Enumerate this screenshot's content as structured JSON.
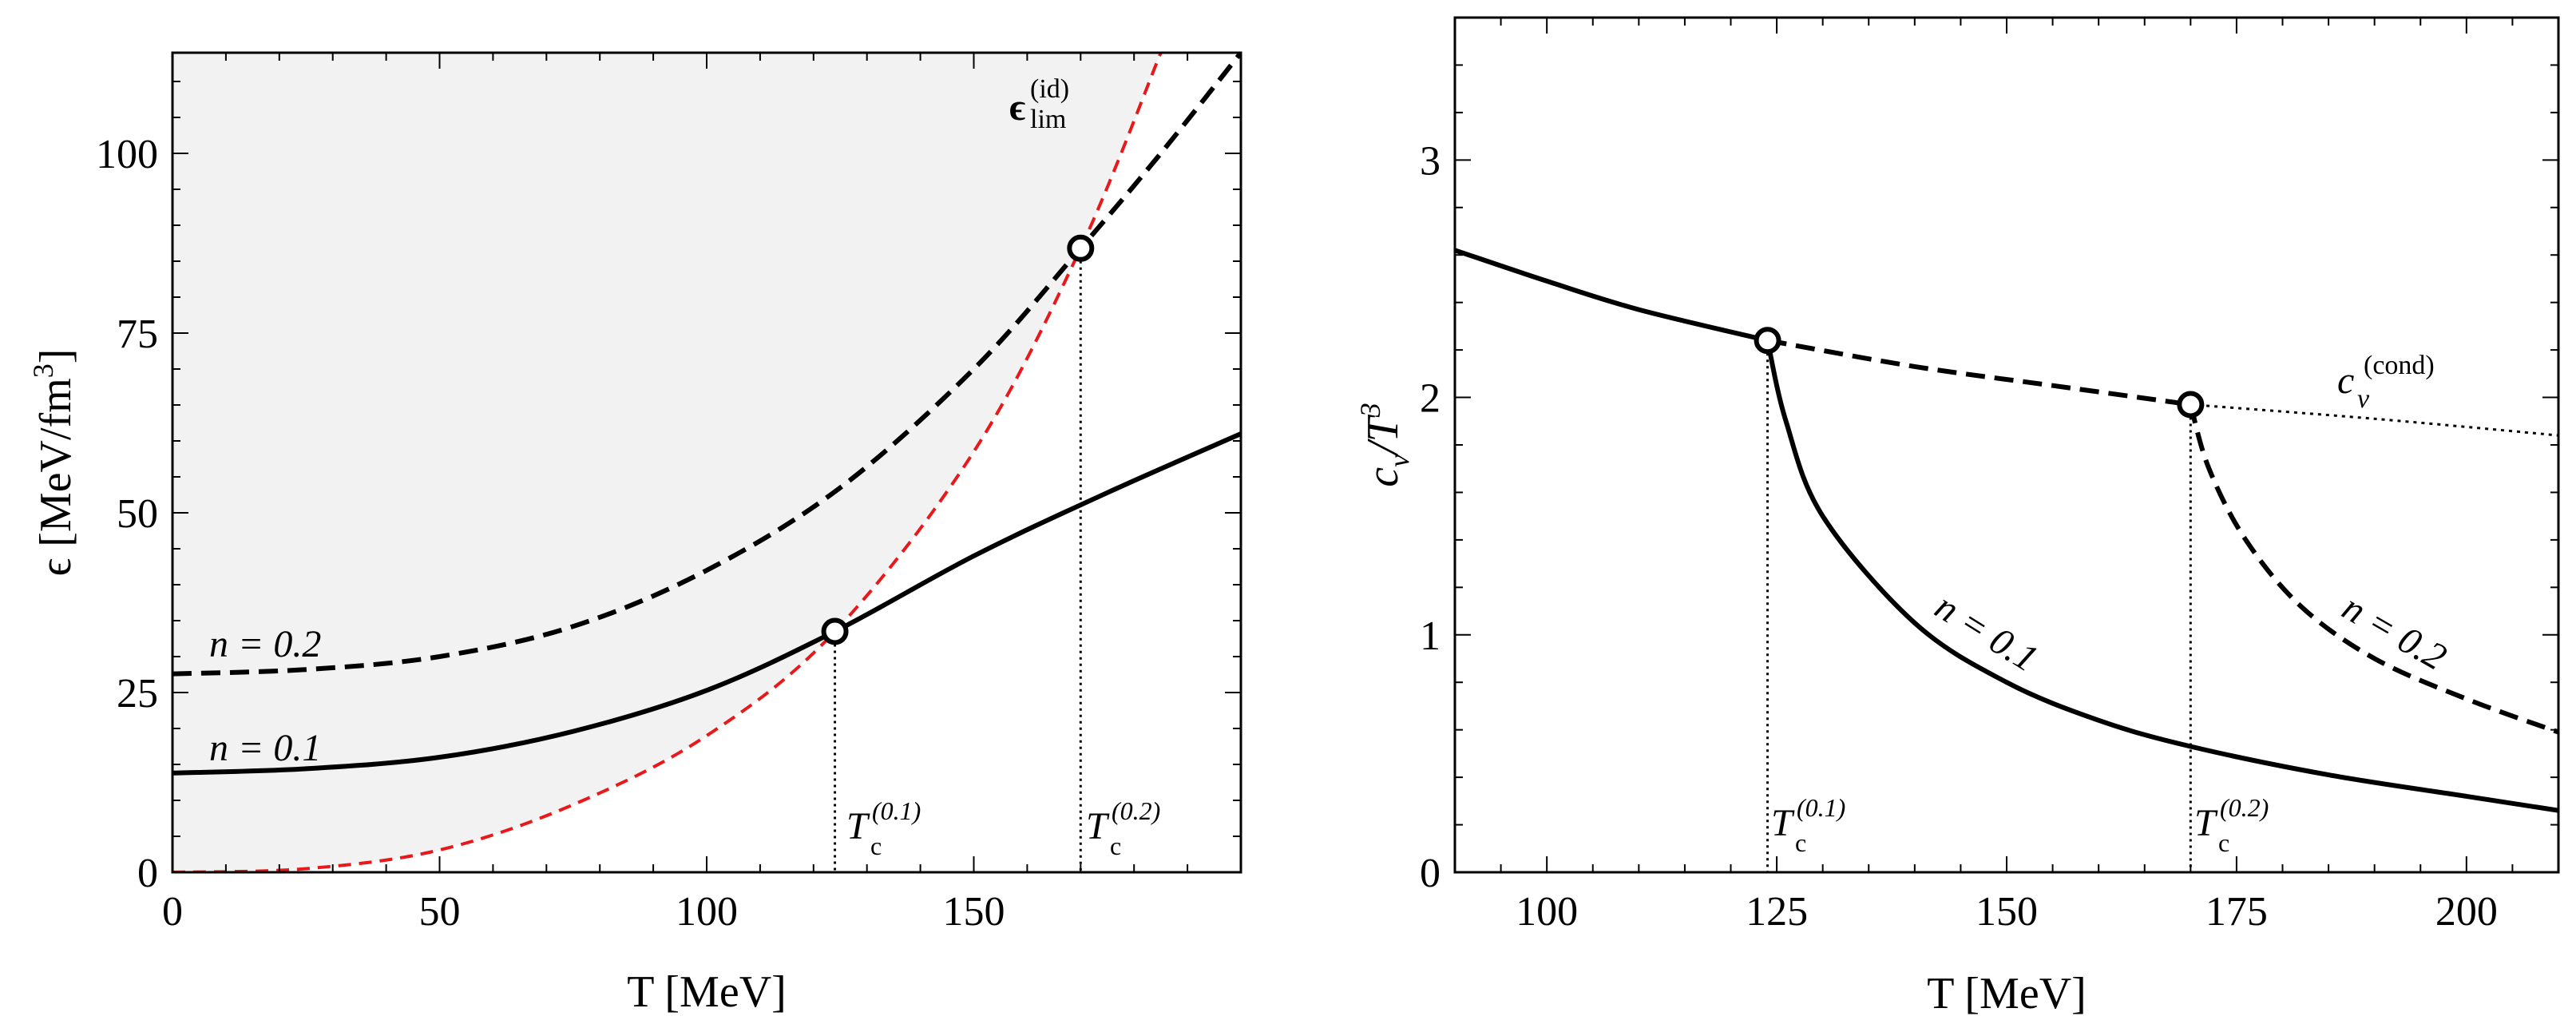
{
  "chart_data": [
    {
      "type": "line",
      "name": "energy-density",
      "xlabel": "T [MeV]",
      "ylabel": "ϵ [MeV/fm³]",
      "ylabel_parts": [
        "ϵ [MeV/fm",
        "3",
        "]"
      ],
      "xlim": [
        0,
        200
      ],
      "ylim": [
        0,
        114
      ],
      "xticks": [
        0,
        50,
        100,
        150
      ],
      "yticks": [
        0,
        25,
        50,
        75,
        100
      ],
      "shaded_region": "above ideal-gas limit curve",
      "shade_color": "#f2f2f2",
      "series": [
        {
          "name": "n = 0.1",
          "style": "solid",
          "color": "#000000",
          "x": [
            0,
            25,
            50,
            75,
            100,
            124,
            150,
            175,
            200
          ],
          "y": [
            13.8,
            14.4,
            16.0,
            19.6,
            25.3,
            33.5,
            44.0,
            52.8,
            61.0
          ]
        },
        {
          "name": "n = 0.2",
          "style": "dashed",
          "color": "#000000",
          "x": [
            0,
            25,
            50,
            75,
            100,
            125,
            150,
            170,
            185,
            200
          ],
          "y": [
            27.6,
            28.2,
            30.0,
            34.2,
            42.0,
            53.5,
            70.0,
            86.8,
            100.0,
            114.0
          ]
        },
        {
          "name": "ϵ_lim^(id)",
          "style": "dashed",
          "color": "#e8191b",
          "x": [
            0,
            25,
            50,
            75,
            100,
            124,
            150,
            170,
            185
          ],
          "y": [
            0,
            0.5,
            3.1,
            9.4,
            19.0,
            33.5,
            58.5,
            86.8,
            114.0
          ]
        }
      ],
      "critical_points": [
        {
          "label": "T",
          "sub": "c",
          "sup": "(0.1)",
          "x": 124,
          "y": 33.5
        },
        {
          "label": "T",
          "sub": "c",
          "sup": "(0.2)",
          "x": 170,
          "y": 86.8
        }
      ],
      "annotations": {
        "n01": "n = 0.1",
        "n02": "n = 0.2",
        "eps_lim_base": "ϵ",
        "eps_lim_sup": "(id)",
        "eps_lim_sub": "lim"
      }
    },
    {
      "type": "line",
      "name": "specific-heat",
      "xlabel": "T [MeV]",
      "ylabel": "c_v/T³",
      "ylabel_parts": [
        "c",
        "v",
        "/T",
        "3"
      ],
      "xlim": [
        90,
        210
      ],
      "ylim": [
        0,
        3.6
      ],
      "xticks": [
        100,
        125,
        150,
        175,
        200
      ],
      "yticks": [
        0,
        1,
        2,
        3
      ],
      "series": [
        {
          "name": "c_v^(cond) / n = 0.1 below Tc",
          "style": "solid",
          "color": "#000000",
          "x": [
            90,
            100,
            110,
            124
          ],
          "y": [
            2.62,
            2.49,
            2.37,
            2.24
          ]
        },
        {
          "name": "c_v^(cond) between Tc",
          "style": "dashed",
          "color": "#000000",
          "x": [
            124,
            140,
            155,
            170
          ],
          "y": [
            2.24,
            2.13,
            2.05,
            1.97
          ]
        },
        {
          "name": "c_v^(cond) continuation",
          "style": "dotted",
          "color": "#000000",
          "x": [
            170,
            190,
            210
          ],
          "y": [
            1.97,
            1.91,
            1.84
          ]
        },
        {
          "name": "n = 0.1",
          "style": "solid",
          "color": "#000000",
          "x": [
            124,
            126,
            130,
            140,
            150,
            160,
            170,
            185,
            200,
            210
          ],
          "y": [
            2.24,
            1.9,
            1.5,
            1.05,
            0.8,
            0.64,
            0.53,
            0.41,
            0.32,
            0.26
          ]
        },
        {
          "name": "n = 0.2",
          "style": "dashed",
          "color": "#000000",
          "x": [
            170,
            172,
            176,
            182,
            190,
            200,
            210
          ],
          "y": [
            1.97,
            1.7,
            1.4,
            1.12,
            0.9,
            0.73,
            0.59
          ]
        }
      ],
      "critical_points": [
        {
          "label": "T",
          "sub": "c",
          "sup": "(0.1)",
          "x": 124,
          "y": 2.24
        },
        {
          "label": "T",
          "sub": "c",
          "sup": "(0.2)",
          "x": 170,
          "y": 1.97
        }
      ],
      "annotations": {
        "n01": "n = 0.1",
        "n02": "n = 0.2",
        "cv_base": "c",
        "cv_sub": "v",
        "cv_sup": "(cond)"
      }
    }
  ]
}
